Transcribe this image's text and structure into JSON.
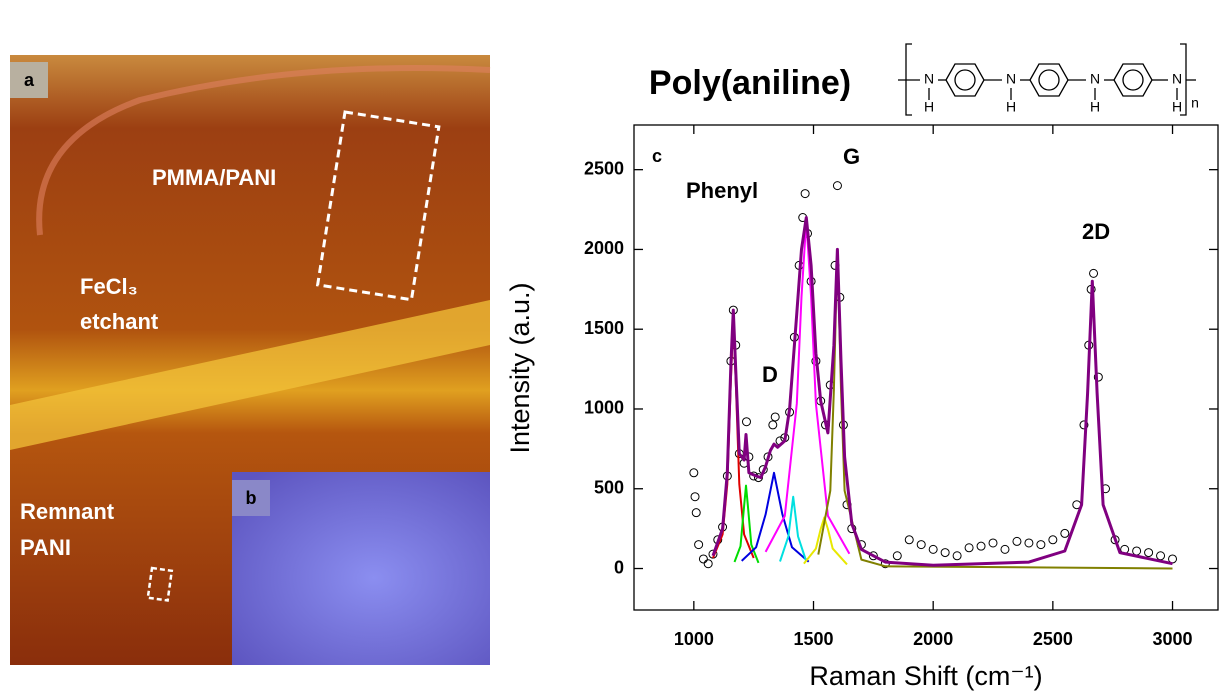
{
  "panel_a": {
    "letter": "a",
    "labels": [
      "PMMA/PANI",
      "FeCl₃",
      "etchant",
      "Remnant",
      "PANI"
    ]
  },
  "panel_b": {
    "letter": "b"
  },
  "structure": {
    "name": "Poly(aniline)",
    "atoms": [
      "N",
      "N",
      "N",
      "N"
    ],
    "hydrogens": [
      "H",
      "H",
      "H",
      "H"
    ],
    "subscript": "n"
  },
  "chart_data": {
    "type": "line",
    "panel": "c",
    "x_label": "Raman Shift (cm⁻¹)",
    "y_label": "Intensity (a.u.)",
    "annotations": [
      "Phenyl",
      "D",
      "G",
      "2D"
    ],
    "xlim": [
      750,
      3190
    ],
    "ylim": [
      -260,
      2780
    ],
    "xticks": [
      1000,
      1500,
      2000,
      2500,
      3000
    ],
    "yticks": [
      0,
      500,
      1000,
      1500,
      2000,
      2500
    ],
    "series": [
      {
        "type": "scatter",
        "color": "#000000",
        "x": [
          1000,
          1005,
          1010,
          1020,
          1040,
          1060,
          1080,
          1100,
          1120,
          1140,
          1155,
          1165,
          1175,
          1190,
          1210,
          1220,
          1230,
          1250,
          1270,
          1290,
          1310,
          1330,
          1340,
          1360,
          1380,
          1400,
          1420,
          1440,
          1455,
          1465,
          1475,
          1490,
          1510,
          1530,
          1550,
          1570,
          1590,
          1600,
          1610,
          1625,
          1640,
          1660,
          1700,
          1750,
          1800,
          1850,
          1900,
          1950,
          2000,
          2050,
          2100,
          2150,
          2200,
          2250,
          2300,
          2350,
          2400,
          2450,
          2500,
          2550,
          2600,
          2630,
          2650,
          2660,
          2670,
          2690,
          2720,
          2760,
          2800,
          2850,
          2900,
          2950,
          3000
        ],
        "values": [
          600,
          450,
          350,
          150,
          60,
          30,
          90,
          180,
          260,
          580,
          1300,
          1620,
          1400,
          720,
          660,
          920,
          700,
          580,
          570,
          620,
          700,
          900,
          950,
          800,
          820,
          980,
          1450,
          1900,
          2200,
          2350,
          2100,
          1800,
          1300,
          1050,
          900,
          1150,
          1900,
          2400,
          1700,
          900,
          400,
          250,
          150,
          80,
          30,
          80,
          180,
          150,
          120,
          100,
          80,
          130,
          140,
          160,
          120,
          170,
          160,
          150,
          180,
          220,
          400,
          900,
          1400,
          1750,
          1850,
          1200,
          500,
          180,
          120,
          110,
          100,
          80,
          60
        ]
      },
      {
        "type": "line",
        "color": "#e00000",
        "x": [
          1080,
          1120,
          1140,
          1155,
          1165,
          1175,
          1190,
          1210,
          1250
        ],
        "values": [
          66,
          214,
          529,
          1183,
          1550,
          1183,
          529,
          214,
          66
        ]
      },
      {
        "type": "line",
        "color": "#00dd00",
        "x": [
          1170,
          1195,
          1210,
          1218,
          1226,
          1240,
          1270
        ],
        "values": [
          41,
          140,
          391,
          520,
          391,
          150,
          35
        ]
      },
      {
        "type": "line",
        "color": "#0000e0",
        "x": [
          1200,
          1260,
          1300,
          1335,
          1370,
          1410,
          1480
        ],
        "values": [
          48,
          133,
          339,
          600,
          339,
          133,
          43
        ]
      },
      {
        "type": "line",
        "color": "#00e0e0",
        "x": [
          1360,
          1395,
          1415,
          1435,
          1470
        ],
        "values": [
          44,
          202,
          450,
          202,
          44
        ]
      },
      {
        "type": "line",
        "color": "#ff00ff",
        "x": [
          1300,
          1380,
          1430,
          1450,
          1470,
          1490,
          1510,
          1560,
          1650
        ],
        "values": [
          104,
          330,
          1033,
          1703,
          2180,
          1703,
          1033,
          330,
          93
        ]
      },
      {
        "type": "line",
        "color": "#e8e800",
        "x": [
          1460,
          1510,
          1530,
          1545,
          1560,
          1580,
          1640
        ],
        "values": [
          31,
          125,
          248,
          320,
          248,
          125,
          26
        ]
      },
      {
        "type": "line",
        "color": "#808000",
        "x": [
          1520,
          1570,
          1585,
          1600,
          1615,
          1630,
          1700,
          1800,
          3000
        ],
        "values": [
          87,
          488,
          1124,
          2000,
          1124,
          488,
          56,
          14,
          0
        ]
      },
      {
        "type": "line",
        "color": "#800080",
        "width": 3,
        "x": [
          1080,
          1120,
          1140,
          1155,
          1165,
          1175,
          1190,
          1210,
          1218,
          1230,
          1260,
          1280,
          1300,
          1320,
          1335,
          1350,
          1380,
          1400,
          1415,
          1430,
          1450,
          1470,
          1490,
          1510,
          1530,
          1560,
          1585,
          1600,
          1615,
          1630,
          1660,
          1700,
          1800,
          2000,
          2400,
          2550,
          2620,
          2645,
          2665,
          2685,
          2710,
          2780,
          3000
        ],
        "values": [
          80,
          250,
          600,
          1280,
          1620,
          1250,
          720,
          680,
          840,
          600,
          580,
          570,
          640,
          740,
          780,
          760,
          800,
          1000,
          1300,
          1600,
          2000,
          2200,
          1900,
          1350,
          1050,
          850,
          1400,
          2000,
          1300,
          700,
          280,
          120,
          40,
          20,
          40,
          110,
          400,
          1100,
          1800,
          1100,
          400,
          100,
          30
        ]
      }
    ]
  }
}
